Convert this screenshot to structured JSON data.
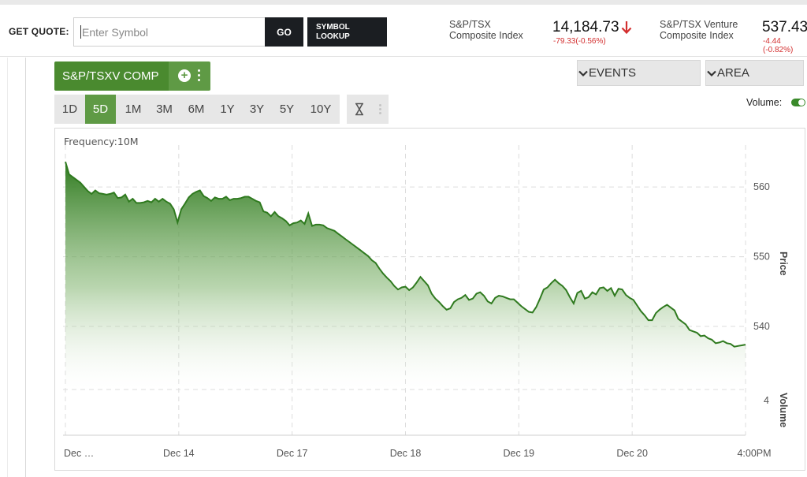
{
  "header": {
    "get_quote_label": "GET QUOTE:",
    "search_placeholder": "Enter Symbol",
    "go_label": "GO",
    "lookup_label": "SYMBOL\nLOOKUP",
    "indices": [
      {
        "name": "S&P/TSX\nComposite Index",
        "value": "14,184.73",
        "change": "-79.33(-0.56%)",
        "direction": "down"
      },
      {
        "name": "S&P/TSX Venture\nComposite Index",
        "value": "537.43",
        "change": "-4.44 (-0.82%)",
        "direction": "down"
      }
    ]
  },
  "toolbar": {
    "symbol_label": "S&P/TSXV COMP",
    "events_label": "EVENTS",
    "type_label": "AREA",
    "ranges": [
      "1D",
      "5D",
      "1M",
      "3M",
      "6M",
      "1Y",
      "3Y",
      "5Y",
      "10Y"
    ],
    "active_range": "5D",
    "volume_label": "Volume:",
    "volume_enabled": true
  },
  "colors": {
    "accent_green": "#4a8a2f",
    "line_green": "#2f7a1f",
    "down_red": "#d32f2f",
    "button_dark": "#1b1e22"
  },
  "chart_data": {
    "type": "area",
    "frequency_label": "Frequency:10M",
    "x_tick_labels": [
      "Dec …",
      "Dec 14",
      "Dec 17",
      "Dec 18",
      "Dec 19",
      "Dec 20",
      "4:00PM"
    ],
    "price_axis_label": "Price",
    "volume_axis_label": "Volume",
    "price_ticks": [
      540,
      550,
      560
    ],
    "volume_ticks": [
      4
    ],
    "ylim": [
      533,
      566
    ],
    "values": [
      563.6,
      561.8,
      561.4,
      561.0,
      560.6,
      560.0,
      559.4,
      559.0,
      559.5,
      559.1,
      559.0,
      558.9,
      559.0,
      559.2,
      558.4,
      558.5,
      558.9,
      557.9,
      558.3,
      557.7,
      557.7,
      557.8,
      558.0,
      557.8,
      558.3,
      557.9,
      558.3,
      557.9,
      557.6,
      556.8,
      554.9,
      556.8,
      557.6,
      558.5,
      559.0,
      559.3,
      559.5,
      558.7,
      558.4,
      558.0,
      558.5,
      558.3,
      558.3,
      558.6,
      558.1,
      558.3,
      558.3,
      558.4,
      558.6,
      558.6,
      558.3,
      558.0,
      557.8,
      556.5,
      556.3,
      555.8,
      556.4,
      555.8,
      555.5,
      555.1,
      554.5,
      554.8,
      554.9,
      555.2,
      554.7,
      556.2,
      554.4,
      554.6,
      554.6,
      554.5,
      554.1,
      553.9,
      553.7,
      553.3,
      552.9,
      552.5,
      552.1,
      551.7,
      551.3,
      550.9,
      550.5,
      550.1,
      549.5,
      549.1,
      548.3,
      547.6,
      547.0,
      546.5,
      545.8,
      545.3,
      545.6,
      545.7,
      545.2,
      545.6,
      546.3,
      547.1,
      546.5,
      545.9,
      544.7,
      544.0,
      543.5,
      542.9,
      542.4,
      542.6,
      543.5,
      543.9,
      544.1,
      544.5,
      543.8,
      544.0,
      544.7,
      544.9,
      544.4,
      543.6,
      543.3,
      544.1,
      544.4,
      544.3,
      544.1,
      543.9,
      543.9,
      543.4,
      542.9,
      542.5,
      542.1,
      542.0,
      542.8,
      544.0,
      545.3,
      545.6,
      546.2,
      546.7,
      546.2,
      545.8,
      545.2,
      544.2,
      543.3,
      544.8,
      545.1,
      544.0,
      544.2,
      544.9,
      544.6,
      545.5,
      545.6,
      545.1,
      545.5,
      544.4,
      545.4,
      545.3,
      544.5,
      544.1,
      543.8,
      543.0,
      542.2,
      541.6,
      540.9,
      540.9,
      541.9,
      542.4,
      542.8,
      543.1,
      542.7,
      542.3,
      541.1,
      540.7,
      540.3,
      539.5,
      539.3,
      539.1,
      538.6,
      538.7,
      538.3,
      538.1,
      537.6,
      537.7,
      537.9,
      537.6,
      537.5,
      537.1,
      537.2,
      537.3,
      537.4
    ]
  }
}
